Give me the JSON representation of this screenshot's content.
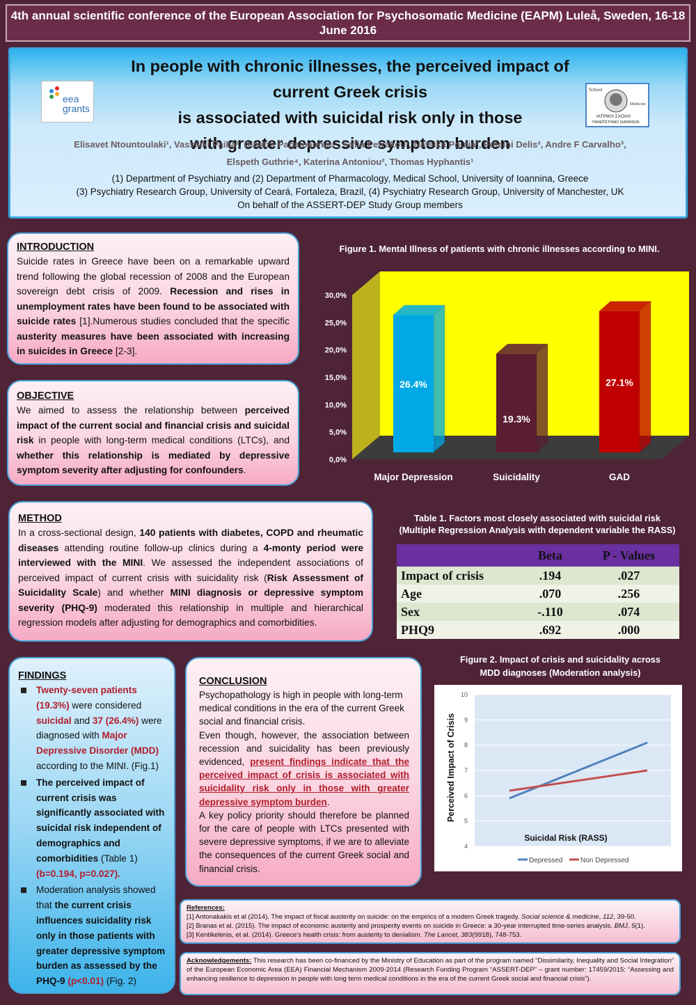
{
  "conference": "4th annual scientific conference of the European Association for Psychosomatic Medicine (EAPM)  Luleå, Sweden, 16-18 June 2016",
  "title_lines": [
    "In people with chronic illnesses, the perceived impact of current Greek crisis",
    "is associated with suicidal risk only in those",
    "with greater depressive symptom burden"
  ],
  "authors_line1": "Elisavet Ntountoulaki¹, Vassiliki Paika¹, Dimitra Papaioannou¹, Sofia Petrakou¹, Nafsika Poulia², Foteini Delis², Andre F Carvalho³,",
  "authors_line2": "Elspeth Guthrie⁴, Katerina Antoniou², Thomas Hyphantis¹",
  "affil_lines": [
    "(1) Department of Psychiatry and (2) Department of Pharmacology, Medical School, University of Ioannina, Greece",
    "(3) Psychiatry Research Group, University of Ceará, Fortaleza, Brazil, (4) Psychiatry Research Group, University of Manchester, UK",
    "On behalf of the ASSERT-DEP Study Group members"
  ],
  "logo_left": {
    "line1": "eea",
    "line2": "grants",
    "colors": [
      "#2f8fd0",
      "#e9262a",
      "#f7a823",
      "#2e9e4c"
    ]
  },
  "logo_right": {
    "top": "School",
    "side": "Medicine",
    "bottom1": "ΙΑΤΡΙΚΗ ΣΧΟΛΗ",
    "bottom2": "ΠΑΝΕΠΙΣΤΗΜΙΟ ΙΩΑΝΝΙΝΩΝ"
  },
  "intro": {
    "heading": "INTRODUCTION",
    "p1": "Suicide rates in Greece have been on a remarkable upward trend following the global recession of 2008 and the European sovereign debt crisis of 2009. ",
    "b1": "Recession and rises in unemployment rates have been found to be associated with suicide rates",
    "p2": " [1].Numerous studies concluded that the specific ",
    "b2": "austerity measures have been associated with increasing in suicides in Greece",
    "p3": " [2-3]."
  },
  "objective": {
    "heading": "OBJECTIVE",
    "p1": "We aimed to assess the relationship between ",
    "b1": "perceived impact of the current social and financial crisis and suicidal risk",
    "p2": " in people with long-term medical conditions (LTCs), and ",
    "b2": "whether this relationship is mediated by depressive symptom severity after adjusting for confounders",
    "p3": "."
  },
  "method": {
    "heading": "METHOD",
    "p1": "In a cross-sectional design, ",
    "b1": "140 patients with diabetes, COPD and rheumatic diseases",
    "p2": " attending routine follow-up clinics during a ",
    "b2": "4-monty period were interviewed with the MINI",
    "p3": ". We assessed the independent associations of perceived impact of current crisis with suicidality risk (",
    "b3": "Risk Assessment of Suicidality Scale",
    "p4": ") and whether ",
    "b4": "MINI diagnosis or depressive symptom severity    (PHQ-9)",
    "p5": " moderated this relationship in multiple and hierarchical regression models after adjusting for demographics and comorbidities."
  },
  "findings": {
    "heading": "FINDINGS",
    "i1_r1": " Twenty-seven patients (19.3%)",
    "i1_t1": " were considered ",
    "i1_r2": "suicidal",
    "i1_t2": " and ",
    "i1_r3": "37 (26.4%)",
    "i1_t3": " were diagnosed with ",
    "i1_r4": "Major Depressive Disorder (MDD)",
    "i1_t4": " according to the MINI. (Fig.1)",
    "i2_b": "The perceived impact of current crisis was significantly associated with suicidal risk independent of demographics and comorbidities",
    "i2_t": "  (Table 1) ",
    "i2_r": "(b=0.194, p=0.027).",
    "i3_t1": "Moderation analysis showed that ",
    "i3_b": "the current crisis influences suicidality risk only in those patients with greater depressive symptom burden as assessed by the PHQ-9",
    "i3_r": " (p<0.01)",
    "i3_t2": " (Fig. 2)"
  },
  "conclusion": {
    "heading": "CONCLUSION",
    "p1": " Psychopathology is high in people with long-term medical conditions in the era of the current Greek social and financial crisis.",
    "p2": "Even though, however, the association between recession and suicidality has been previously evidenced, ",
    "r1": "present findings indicate that the perceived impact of crisis is associated with suicidality risk only in those with greater depressive symptom burden",
    "p3": ".",
    "p4": "A key policy priority should therefore be planned for the care of people with LTCs presented with severe depressive symptoms, if we are to alleviate the consequences of the current Greek social and financial crisis."
  },
  "figure1_caption": "Figure 1. Mental Illness of patients with chronic illnesses according to MINI.",
  "table1": {
    "caption_line1": "Table 1. Factors most closely associated with suicidal risk",
    "caption_line2": "(Multiple Regression Analysis with dependent variable the RASS)",
    "headers": [
      "",
      "Beta",
      "P - Values"
    ],
    "rows": [
      [
        "Impact of crisis",
        ".194",
        ".027"
      ],
      [
        "Age",
        ".070",
        ".256"
      ],
      [
        "Sex",
        "-.110",
        ".074"
      ],
      [
        "PHQ9",
        ".692",
        ".000"
      ]
    ],
    "header_color": "#6a2fa0"
  },
  "figure2_caption_line1": "Figure 2. Impact of crisis and suicidality across",
  "figure2_caption_line2": "MDD diagnoses (Moderation analysis)",
  "references": {
    "heading": "References:",
    "r1a": "[1] Antonakakis et al (2014). The impact of fiscal austerity on suicide: on the empirics of a modern Greek tragedy. ",
    "r1i": "Social science & medicine",
    "r1b": ", ",
    "r1v": "112",
    "r1c": ", 39-50.",
    "r2a": "[2] Branas et al. (2015). The impact of economic austerity and prosperity events on suicide in Greece: a 30-year interrupted time-series analysis. ",
    "r2i": "BMJ",
    "r2b": ", ",
    "r2v": "5",
    "r2c": "(1).",
    "r3a": "[3] Kentikelenis, et al. (2014). Greece's health crisis: from austerity to denialism. ",
    "r3i": "The Lancet",
    "r3b": ", ",
    "r3v": "383",
    "r3c": "(9918), 748-753."
  },
  "acknowledgements": {
    "heading": "Acknowledgements:",
    "text": " This research has been co-financed by the Ministry of Education as part of the program named “Dissimilarity, Inequality and Social Integration” of the European Economic Area (EEA) Financial Mechanism 2009-2014 (Research Funding Program “ASSERT-DEP” – grant number: 17459/2015: “Assessing and enhancing resilience to depression in people with long term medical conditions in the era of the current Greek social and financial crisis”)."
  },
  "chart_data": [
    {
      "type": "bar",
      "title": "Figure 1. Mental Illness of patients with chronic illnesses according to MINI.",
      "categories": [
        "Major Depression",
        "Suicidality",
        "GAD"
      ],
      "values": [
        26.4,
        19.3,
        27.1
      ],
      "data_labels": [
        "26.4%",
        "19.3%",
        "27.1%"
      ],
      "colors": [
        "#00a9e6",
        "#5a1d32",
        "#c00000"
      ],
      "yticks": [
        "0,0%",
        "5,0%",
        "10,0%",
        "15,0%",
        "20,0%",
        "25,0%",
        "30,0%"
      ],
      "ylim": [
        0,
        30
      ],
      "plot_background": "#ffff00",
      "grid": false
    },
    {
      "type": "line",
      "title": "Figure 2. Impact of crisis and suicidality across MDD diagnoses (Moderation analysis)",
      "xlabel": "Suicidal Risk (RASS)",
      "ylabel": "Perceived Impact of Crisis",
      "ylim": [
        4,
        10
      ],
      "yticks": [
        "4",
        "5",
        "6",
        "7",
        "8",
        "9",
        "10"
      ],
      "legend_position": "bottom",
      "grid": true,
      "series": [
        {
          "name": "Depressed",
          "color": "#4f81bd",
          "values": [
            5.9,
            8.1
          ]
        },
        {
          "name": "Non Depressed",
          "color": "#c0504d",
          "values": [
            6.2,
            7.0
          ]
        }
      ]
    }
  ]
}
